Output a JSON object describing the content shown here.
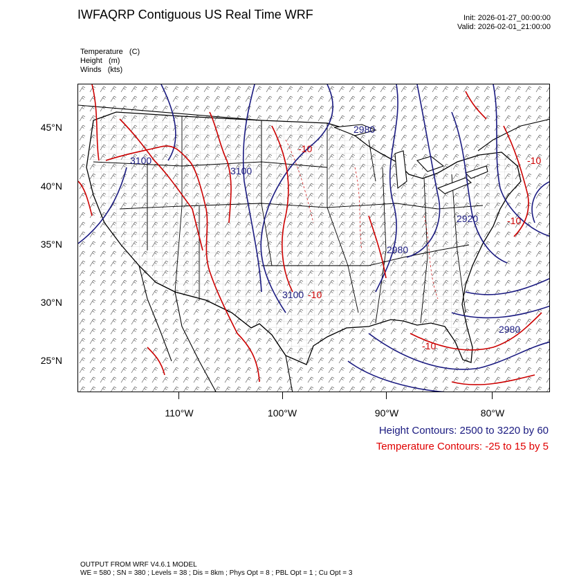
{
  "header": {
    "title": "IWFAQRP Contiguous US Real Time WRF",
    "init": "Init: 2026-01-27_00:00:00",
    "valid": "Valid: 2026-02-01_21:00:00"
  },
  "fields": [
    {
      "label": "Temperature   (C)"
    },
    {
      "label": "Height   (m)"
    },
    {
      "label": "Winds   (kts)"
    }
  ],
  "lat_labels": [
    "45°N",
    "40°N",
    "35°N",
    "30°N",
    "25°N"
  ],
  "lon_labels": [
    "110°W",
    "100°W",
    "90°W",
    "80°W"
  ],
  "contour_labels": {
    "height": [
      "3100",
      "3100",
      "2980",
      "2920",
      "2980",
      "3100",
      "2980"
    ],
    "temp": [
      "-10",
      "-10",
      "-10",
      "-10",
      "-10"
    ]
  },
  "legend": {
    "height": "Height Contours: 2500 to 3220 by 60",
    "temperature": "Temperature Contours: -25 to 15 by 5"
  },
  "footer": {
    "line1": "OUTPUT FROM WRF V4.6.1 MODEL",
    "line2": "WE = 580 ; SN = 380 ; Levels = 38 ; Dis = 8km ; Phys Opt = 8 ; PBL Opt = 1 ; Cu Opt = 3"
  },
  "colors": {
    "height_contour": "#1a1a80",
    "temperature_contour": "#cc0000",
    "legend_height": "#1a1a80",
    "legend_temperature": "#e00000"
  }
}
